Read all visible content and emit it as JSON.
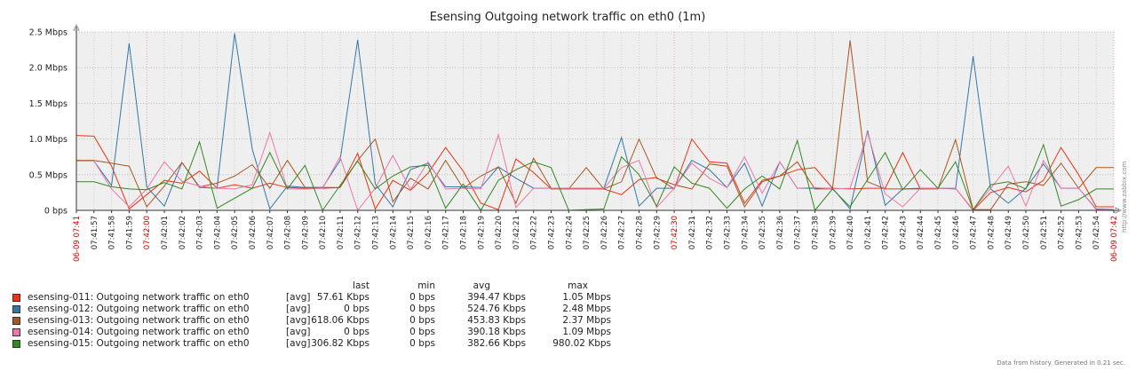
{
  "chart_data": {
    "type": "line",
    "title": "Esensing Outgoing network traffic on eth0 (1m)",
    "y_ticks": [
      "0 bps",
      "0.5 Mbps",
      "1.0 Mbps",
      "1.5 Mbps",
      "2.0 Mbps",
      "2.5 Mbps"
    ],
    "ylim": [
      0,
      2.5
    ],
    "y_unit": "Mbps",
    "x_ticks": [
      "06-09 07:41",
      "07:41:57",
      "07:41:58",
      "07:41:59",
      "07:42:00",
      "07:42:01",
      "07:42:02",
      "07:42:03",
      "07:42:04",
      "07:42:05",
      "07:42:06",
      "07:42:07",
      "07:42:08",
      "07:42:09",
      "07:42:10",
      "07:42:11",
      "07:42:12",
      "07:42:13",
      "07:42:14",
      "07:42:15",
      "07:42:16",
      "07:42:17",
      "07:42:18",
      "07:42:19",
      "07:42:20",
      "07:42:21",
      "07:42:22",
      "07:42:23",
      "07:42:24",
      "07:42:25",
      "07:42:26",
      "07:42:27",
      "07:42:28",
      "07:42:29",
      "07:42:30",
      "07:42:31",
      "07:42:32",
      "07:42:33",
      "07:42:34",
      "07:42:35",
      "07:42:36",
      "07:42:37",
      "07:42:38",
      "07:42:39",
      "07:42:40",
      "07:42:41",
      "07:42:42",
      "07:42:43",
      "07:42:44",
      "07:42:45",
      "07:42:46",
      "07:42:47",
      "07:42:48",
      "07:42:49",
      "07:42:50",
      "07:42:51",
      "07:42:52",
      "07:42:53",
      "07:42:54",
      "06-09 07:42"
    ],
    "x_ticks_red": [
      "06-09 07:41",
      "07:42:00",
      "07:42:30",
      "06-09 07:42"
    ],
    "grid": true,
    "series": [
      {
        "name": "esensing-011: Outgoing network traffic on eth0",
        "color": "#ee3311",
        "values": [
          1.05,
          1.04,
          0.62,
          0.02,
          0.22,
          0.42,
          0.38,
          0.55,
          0.31,
          0.36,
          0.31,
          0.38,
          0.32,
          0.31,
          0.31,
          0.32,
          0.8,
          0.02,
          0.42,
          0.28,
          0.52,
          0.88,
          0.55,
          0.1,
          0.01,
          0.72,
          0.53,
          0.3,
          0.3,
          0.3,
          0.3,
          0.22,
          0.43,
          0.46,
          0.3,
          1.0,
          0.68,
          0.66,
          0.1,
          0.42,
          0.48,
          0.57,
          0.6,
          0.31,
          0.3,
          0.31,
          0.31,
          0.81,
          0.3,
          0.31,
          0.31,
          0.0,
          0.25,
          0.32,
          0.26,
          0.42,
          0.88,
          0.5,
          0.05,
          0.05
        ]
      },
      {
        "name": "esensing-012: Outgoing network traffic on eth0",
        "color": "#3377aa",
        "values": [
          0.7,
          0.69,
          0.35,
          2.34,
          0.33,
          0.06,
          0.67,
          0.32,
          0.31,
          2.48,
          0.86,
          0.02,
          0.34,
          0.32,
          0.32,
          0.7,
          2.39,
          0.37,
          0.05,
          0.57,
          0.66,
          0.33,
          0.33,
          0.32,
          0.61,
          0.45,
          0.31,
          0.31,
          0.31,
          0.31,
          0.31,
          1.02,
          0.06,
          0.31,
          0.31,
          0.7,
          0.57,
          0.32,
          0.66,
          0.06,
          0.68,
          0.31,
          0.31,
          0.31,
          0.02,
          1.12,
          0.07,
          0.3,
          0.31,
          0.31,
          0.3,
          2.16,
          0.3,
          0.1,
          0.31,
          0.65,
          0.31,
          0.31,
          0.02,
          0.01
        ]
      },
      {
        "name": "esensing-013: Outgoing network traffic on eth0",
        "color": "#aa5522",
        "values": [
          0.7,
          0.7,
          0.66,
          0.62,
          0.05,
          0.34,
          0.67,
          0.33,
          0.38,
          0.48,
          0.64,
          0.31,
          0.7,
          0.32,
          0.32,
          0.32,
          0.7,
          1.0,
          0.12,
          0.45,
          0.3,
          0.7,
          0.31,
          0.48,
          0.61,
          0.1,
          0.73,
          0.31,
          0.3,
          0.6,
          0.3,
          0.4,
          1.0,
          0.45,
          0.36,
          0.3,
          0.65,
          0.62,
          0.05,
          0.4,
          0.48,
          0.68,
          0.3,
          0.3,
          2.38,
          0.4,
          0.3,
          0.3,
          0.3,
          0.3,
          0.99,
          0.01,
          0.01,
          0.37,
          0.4,
          0.35,
          0.66,
          0.31,
          0.6,
          0.6
        ]
      },
      {
        "name": "esensing-014: Outgoing network traffic on eth0",
        "color": "#ee77aa",
        "values": [
          0.69,
          0.69,
          0.3,
          0.05,
          0.3,
          0.68,
          0.41,
          0.34,
          0.31,
          0.3,
          0.36,
          1.09,
          0.3,
          0.3,
          0.31,
          0.75,
          0.0,
          0.31,
          0.77,
          0.29,
          0.68,
          0.3,
          0.31,
          0.3,
          1.06,
          0.04,
          0.31,
          0.31,
          0.31,
          0.31,
          0.31,
          0.6,
          0.7,
          0.04,
          0.31,
          0.66,
          0.45,
          0.32,
          0.75,
          0.24,
          0.68,
          0.31,
          0.32,
          0.3,
          0.31,
          1.09,
          0.23,
          0.05,
          0.31,
          0.31,
          0.31,
          0.01,
          0.31,
          0.62,
          0.06,
          0.7,
          0.31,
          0.31,
          0.01,
          0.0
        ]
      },
      {
        "name": "esensing-015: Outgoing network traffic on eth0",
        "color": "#338822",
        "values": [
          0.4,
          0.4,
          0.33,
          0.3,
          0.29,
          0.39,
          0.3,
          0.96,
          0.03,
          0.17,
          0.31,
          0.81,
          0.3,
          0.63,
          0.0,
          0.35,
          0.69,
          0.3,
          0.48,
          0.61,
          0.63,
          0.03,
          0.37,
          0.0,
          0.42,
          0.57,
          0.68,
          0.6,
          0.0,
          0.01,
          0.02,
          0.75,
          0.5,
          0.06,
          0.61,
          0.38,
          0.31,
          0.03,
          0.3,
          0.48,
          0.3,
          0.98,
          0.0,
          0.3,
          0.05,
          0.43,
          0.81,
          0.29,
          0.57,
          0.31,
          0.68,
          0.01,
          0.36,
          0.4,
          0.3,
          0.92,
          0.06,
          0.15,
          0.3,
          0.3
        ]
      }
    ]
  },
  "legend": {
    "headers": {
      "last": "last",
      "min": "min",
      "avg": "avg",
      "max": "max"
    },
    "rows": [
      {
        "name": "esensing-011: Outgoing network traffic on eth0",
        "type": "[avg]",
        "last": "57.61 Kbps",
        "min": "0 bps",
        "avg": "394.47 Kbps",
        "max": "1.05 Mbps",
        "color": "#ee3311"
      },
      {
        "name": "esensing-012: Outgoing network traffic on eth0",
        "type": "[avg]",
        "last": "0 bps",
        "min": "0 bps",
        "avg": "524.76 Kbps",
        "max": "2.48 Mbps",
        "color": "#3377aa"
      },
      {
        "name": "esensing-013: Outgoing network traffic on eth0",
        "type": "[avg]",
        "last": "618.06 Kbps",
        "min": "0 bps",
        "avg": "453.83 Kbps",
        "max": "2.37 Mbps",
        "color": "#aa5522"
      },
      {
        "name": "esensing-014: Outgoing network traffic on eth0",
        "type": "[avg]",
        "last": "0 bps",
        "min": "0 bps",
        "avg": "390.18 Kbps",
        "max": "1.09 Mbps",
        "color": "#ee77aa"
      },
      {
        "name": "esensing-015: Outgoing network traffic on eth0",
        "type": "[avg]",
        "last": "306.82 Kbps",
        "min": "0 bps",
        "avg": "382.66 Kbps",
        "max": "980.02 Kbps",
        "color": "#338822"
      }
    ]
  },
  "footer": "Data from history. Generated in 0.21 sec.",
  "side_text": "http://www.zabbix.com"
}
